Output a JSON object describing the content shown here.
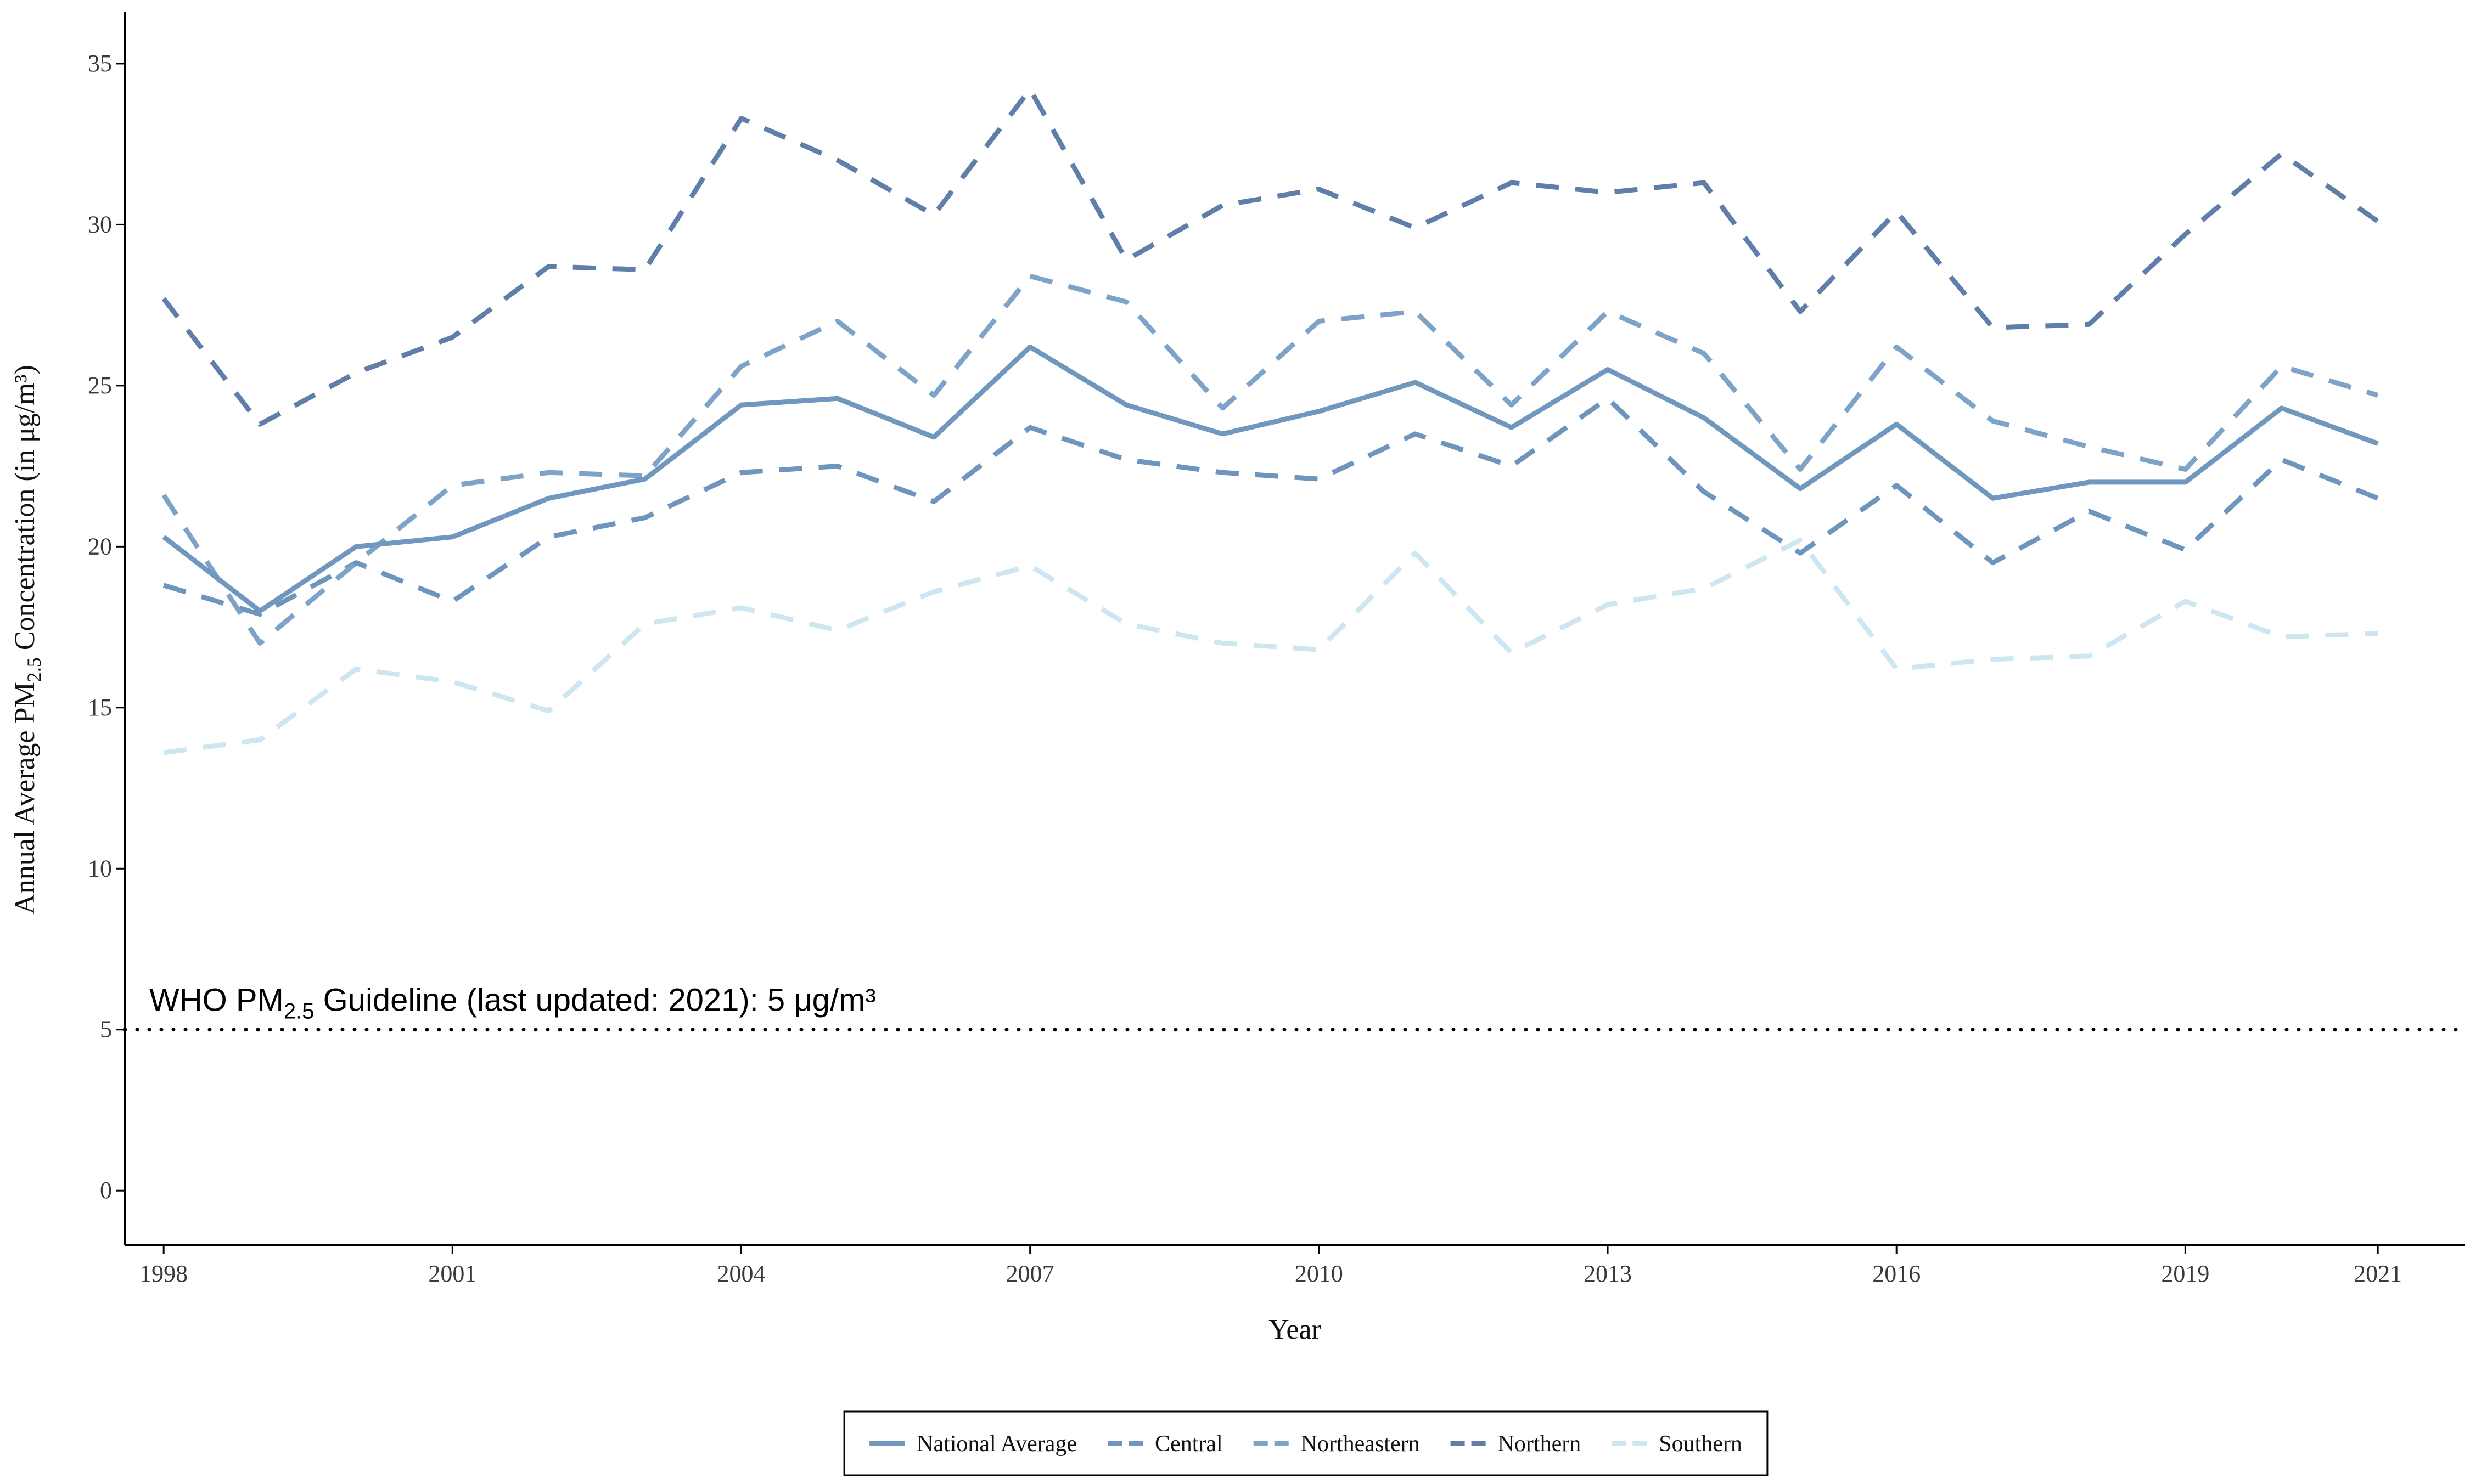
{
  "chart_data": {
    "type": "line",
    "title": "",
    "xlabel": "Year",
    "ylabel": "Annual Average PM2.5 Concentration (in μg/m³)",
    "ylabel_parts": {
      "before": "Annual Average PM",
      "subscript": "2.5",
      "after": " Concentration (in μg/m³)"
    },
    "xlim": [
      1997.6,
      2021.9
    ],
    "ylim": [
      -1.7,
      36.6
    ],
    "x_ticks": [
      1998,
      2001,
      2004,
      2007,
      2010,
      2013,
      2016,
      2019,
      2021
    ],
    "y_ticks": [
      0,
      5,
      10,
      15,
      20,
      25,
      30,
      35
    ],
    "grid": false,
    "legend_position": "bottom",
    "x": [
      1998,
      1999,
      2000,
      2001,
      2002,
      2003,
      2004,
      2005,
      2006,
      2007,
      2008,
      2009,
      2010,
      2011,
      2012,
      2013,
      2014,
      2015,
      2016,
      2017,
      2018,
      2019,
      2020,
      2021
    ],
    "series": [
      {
        "name": "National Average",
        "color": "#7097bd",
        "dash": "solid",
        "values": [
          20.3,
          18.0,
          20.0,
          20.3,
          21.5,
          22.1,
          24.4,
          24.6,
          23.4,
          26.2,
          24.4,
          23.5,
          24.2,
          25.1,
          23.7,
          25.5,
          24.0,
          21.8,
          23.8,
          21.5,
          22.0,
          22.0,
          24.3,
          23.2
        ]
      },
      {
        "name": "Central",
        "color": "#6e95bd",
        "dash": "dashed",
        "values": [
          18.8,
          17.9,
          19.5,
          18.3,
          20.3,
          20.9,
          22.3,
          22.5,
          21.4,
          23.7,
          22.7,
          22.3,
          22.1,
          23.5,
          22.5,
          24.6,
          21.7,
          19.8,
          21.9,
          19.5,
          21.1,
          19.9,
          22.7,
          21.5
        ]
      },
      {
        "name": "Northeastern",
        "color": "#7ea3c8",
        "dash": "dashed",
        "values": [
          21.6,
          17.0,
          19.5,
          21.9,
          22.3,
          22.2,
          25.6,
          27.0,
          24.7,
          28.4,
          27.6,
          24.3,
          27.0,
          27.3,
          24.4,
          27.3,
          26.0,
          22.4,
          26.2,
          23.9,
          23.1,
          22.4,
          25.6,
          24.7
        ]
      },
      {
        "name": "Northern",
        "color": "#5f7ea9",
        "dash": "dashed",
        "values": [
          27.7,
          23.8,
          25.4,
          26.5,
          28.7,
          28.6,
          33.3,
          32.0,
          30.3,
          34.2,
          28.9,
          30.6,
          31.1,
          29.9,
          31.3,
          31.0,
          31.3,
          27.3,
          30.4,
          26.8,
          26.9,
          29.7,
          32.2,
          30.1
        ]
      },
      {
        "name": "Southern",
        "color": "#cde6f2",
        "dash": "dashed",
        "values": [
          13.6,
          14.0,
          16.2,
          15.8,
          14.9,
          17.6,
          18.1,
          17.4,
          18.6,
          19.4,
          17.6,
          17.0,
          16.8,
          19.8,
          16.7,
          18.2,
          18.7,
          20.2,
          16.2,
          16.5,
          16.6,
          18.3,
          17.2,
          17.3
        ]
      }
    ],
    "reference_line": {
      "y": 5,
      "style": "dotted",
      "color": "#000000",
      "label_parts": {
        "before": "WHO PM",
        "subscript": "2.5",
        "after": " Guideline (last updated: 2021): 5 μg/m³"
      }
    }
  }
}
